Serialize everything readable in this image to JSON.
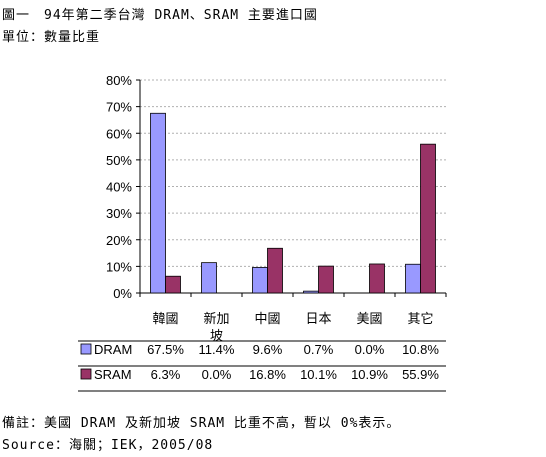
{
  "title": "圖一　94年第二季台灣 DRAM、SRAM 主要進口國",
  "unit": "單位：數量比重",
  "note": "備註：美國 DRAM 及新加坡 SRAM 比重不高，暫以 0%表示。",
  "source": "Source：海關；IEK，2005/08",
  "chart_data": {
    "type": "bar",
    "categories": [
      "韓國",
      "新加坡",
      "中國",
      "日本",
      "美國",
      "其它"
    ],
    "category_lines": [
      [
        "韓國"
      ],
      [
        "新加",
        "坡"
      ],
      [
        "中國"
      ],
      [
        "日本"
      ],
      [
        "美國"
      ],
      [
        "其它"
      ]
    ],
    "series": [
      {
        "name": "DRAM",
        "color": "#9999ff",
        "values": [
          67.5,
          11.4,
          9.6,
          0.7,
          0.0,
          10.8
        ],
        "labels": [
          "67.5%",
          "11.4%",
          "9.6%",
          "0.7%",
          "0.0%",
          "10.8%"
        ]
      },
      {
        "name": "SRAM",
        "color": "#993366",
        "values": [
          6.3,
          0.0,
          16.8,
          10.1,
          10.9,
          55.9
        ],
        "labels": [
          "6.3%",
          "0.0%",
          "16.8%",
          "10.1%",
          "10.9%",
          "55.9%"
        ]
      }
    ],
    "ylim": [
      0,
      80
    ],
    "yticks": [
      "0%",
      "10%",
      "20%",
      "30%",
      "40%",
      "50%",
      "60%",
      "70%",
      "80%"
    ],
    "grid": true,
    "legend": "data table below chart"
  }
}
